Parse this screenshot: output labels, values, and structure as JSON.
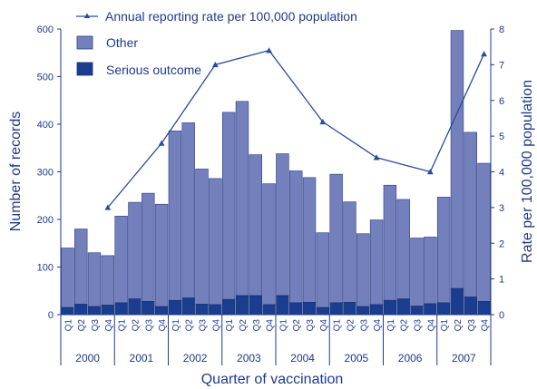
{
  "chart_data": {
    "type": "bar",
    "xlabel": "Quarter of vaccination",
    "ylabel": "Number of records",
    "y2label": "Rate per 100,000 population",
    "ylim": [
      0,
      600
    ],
    "y2lim": [
      0,
      8
    ],
    "yticks": [
      0,
      100,
      200,
      300,
      400,
      500,
      600
    ],
    "y2ticks": [
      0,
      1,
      2,
      3,
      4,
      5,
      6,
      7,
      8
    ],
    "legend_position": "top-left",
    "colors": {
      "other": "#7480bb",
      "serious": "#1a3d8f",
      "line": "#2a4a9f",
      "axis": "#1f3a8a"
    },
    "quarters": [
      "Q1",
      "Q2",
      "Q3",
      "Q4",
      "Q1",
      "Q2",
      "Q3",
      "Q4",
      "Q1",
      "Q2",
      "Q3",
      "Q4",
      "Q1",
      "Q2",
      "Q3",
      "Q4",
      "Q1",
      "Q2",
      "Q3",
      "Q4",
      "Q1",
      "Q2",
      "Q3",
      "Q4",
      "Q1",
      "Q2",
      "Q3",
      "Q4",
      "Q1",
      "Q2",
      "Q3",
      "Q4"
    ],
    "years": [
      "2000",
      "2001",
      "2002",
      "2003",
      "2004",
      "2005",
      "2006",
      "2007"
    ],
    "series": [
      {
        "name": "Other",
        "values": [
          125,
          158,
          113,
          104,
          182,
          203,
          227,
          215,
          356,
          368,
          284,
          265,
          393,
          408,
          296,
          254,
          298,
          277,
          262,
          157,
          270,
          211,
          153,
          178,
          242,
          209,
          143,
          140,
          222,
          542,
          346,
          290
        ]
      },
      {
        "name": "Serious outcome",
        "values": [
          15,
          22,
          17,
          20,
          25,
          33,
          28,
          17,
          30,
          35,
          22,
          21,
          32,
          40,
          40,
          21,
          40,
          25,
          26,
          15,
          25,
          26,
          17,
          21,
          30,
          33,
          18,
          23,
          25,
          55,
          37,
          28
        ]
      }
    ],
    "rate_series": {
      "name": "Annual reporting rate per 100,000 population",
      "points": [
        {
          "q": 4,
          "value": 3.0
        },
        {
          "q": 8,
          "value": 4.8
        },
        {
          "q": 12,
          "value": 7.0
        },
        {
          "q": 16,
          "value": 7.4
        },
        {
          "q": 20,
          "value": 5.4
        },
        {
          "q": 24,
          "value": 4.4
        },
        {
          "q": 28,
          "value": 4.0
        },
        {
          "q": 32,
          "value": 7.3
        }
      ]
    }
  }
}
